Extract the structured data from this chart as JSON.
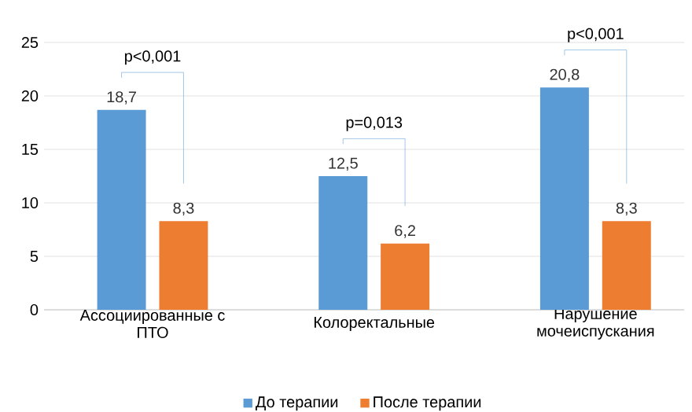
{
  "chart_data": {
    "type": "bar",
    "categories": [
      "Ассоциированные с ПТО",
      "Колоректальные",
      "Нарушение мочеиспускания"
    ],
    "series": [
      {
        "name": "До терапии",
        "color": "#5b9bd5",
        "values": [
          18.7,
          12.5,
          20.8
        ],
        "value_labels": [
          "18,7",
          "12,5",
          "20,8"
        ]
      },
      {
        "name": "После терапии",
        "color": "#ed7d31",
        "values": [
          8.3,
          6.2,
          8.3
        ],
        "value_labels": [
          "8,3",
          "6,2",
          "8,3"
        ]
      }
    ],
    "ylim": [
      0,
      25
    ],
    "yticks": [
      0,
      5,
      10,
      15,
      20,
      25
    ],
    "grid": "y",
    "legend": "bottom",
    "annotations": [
      "p<0,001",
      "p=0,013",
      "p<0,001"
    ]
  }
}
